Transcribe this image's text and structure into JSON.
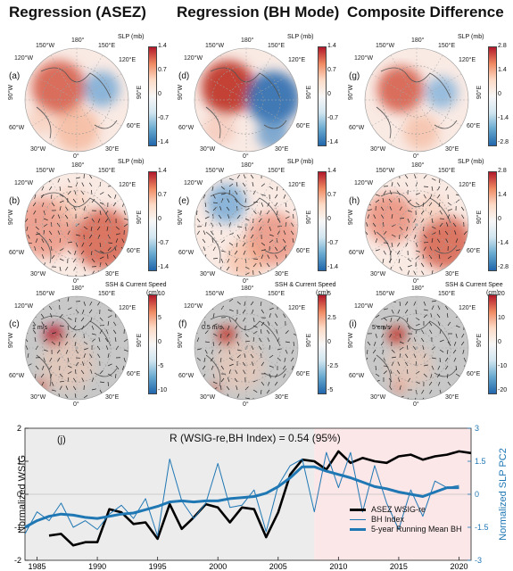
{
  "columns": [
    {
      "title": "Regression (ASEZ)"
    },
    {
      "title": "Regression (BH Mode)"
    },
    {
      "title": "Composite Difference"
    }
  ],
  "map_labels": {
    "lon_180": "180°",
    "lon_150w": "150°W",
    "lon_150e": "150°E",
    "lon_120w": "120°W",
    "lon_120e": "120°E",
    "lon_90w": "90°W",
    "lon_90e": "90°E",
    "lon_60w": "60°W",
    "lon_60e": "60°E",
    "lon_30w": "30°W",
    "lon_30e": "30°E",
    "lon_0": "0°"
  },
  "panels": [
    {
      "id": "a",
      "label": "(a)",
      "cbar_title": "SLP (mb)",
      "ticks": [
        "1.4",
        "0.7",
        "0",
        "-0.7",
        "-1.4"
      ]
    },
    {
      "id": "d",
      "label": "(d)",
      "cbar_title": "SLP (mb)",
      "ticks": [
        "1.4",
        "0.7",
        "0",
        "-0.7",
        "-1.4"
      ]
    },
    {
      "id": "g",
      "label": "(g)",
      "cbar_title": "SLP (mb)",
      "ticks": [
        "2.8",
        "1.4",
        "0",
        "-1.4",
        "-2.8"
      ]
    },
    {
      "id": "b",
      "label": "(b)",
      "cbar_title": "SLP (mb)",
      "ticks": [
        "1.4",
        "0.7",
        "0",
        "-0.7",
        "-1.4"
      ]
    },
    {
      "id": "e",
      "label": "(e)",
      "cbar_title": "SLP (mb)",
      "ticks": [
        "1.4",
        "0.7",
        "0",
        "-0.7",
        "-1.4"
      ]
    },
    {
      "id": "h",
      "label": "(h)",
      "cbar_title": "SLP (mb)",
      "ticks": [
        "2.8",
        "1.4",
        "0",
        "-1.4",
        "-2.8"
      ]
    },
    {
      "id": "c",
      "label": "(c)",
      "cbar_title": "SSH & Current Speed",
      "cbar_unit": "(cm)",
      "ticks": [
        "10",
        "5",
        "0",
        "-5",
        "-10"
      ],
      "ref": "1 m/s"
    },
    {
      "id": "f",
      "label": "(f)",
      "cbar_title": "SSH & Current Speed",
      "cbar_unit": "(cm)",
      "ticks": [
        "5",
        "2.5",
        "0",
        "-2.5",
        "-5"
      ],
      "ref": "0.5 m/s"
    },
    {
      "id": "i",
      "label": "(i)",
      "cbar_title": "SSH & Current Spee",
      "cbar_unit": "(cm)",
      "ticks": [
        "20",
        "10",
        "0",
        "-10",
        "-20"
      ],
      "ref": "5 cm/s"
    }
  ],
  "timeseries": {
    "panel_label": "(j)",
    "title": "R (WSIG-re,BH Index) = 0.54 (95%)",
    "ylabel_left": "Normalized WSIG",
    "ylabel_right": "Normalized SLP PC2",
    "colors": {
      "wsig": "#000000",
      "bh": "#1f77b4",
      "running": "#1f77b4",
      "bg_early": "#ececec",
      "bg_late": "#fbe6e8"
    },
    "legend": [
      "ASEZ WSIG-re",
      "BH Index",
      "5-year Running Mean BH"
    ]
  },
  "chart_data": {
    "type": "line",
    "xlim": [
      1984,
      2021
    ],
    "ylim_left": [
      -2,
      2
    ],
    "ylim_right": [
      -3,
      3
    ],
    "x_ticks": [
      "1985",
      "1990",
      "1995",
      "2000",
      "2005",
      "2010",
      "2015",
      "2020"
    ],
    "y_ticks_left": [
      "-2",
      "-1",
      "0",
      "1",
      "2"
    ],
    "y_ticks_right": [
      "-3",
      "-1.5",
      "0",
      "1.5",
      "3"
    ],
    "shading": [
      {
        "from": 1984,
        "to": 2008,
        "color": "gray"
      },
      {
        "from": 2008,
        "to": 2021,
        "color": "pink"
      }
    ],
    "series": [
      {
        "name": "ASEZ WSIG-re",
        "axis": "left",
        "x": [
          1986,
          1987,
          1988,
          1989,
          1990,
          1991,
          1992,
          1993,
          1994,
          1995,
          1996,
          1997,
          1998,
          1999,
          2000,
          2001,
          2002,
          2003,
          2004,
          2005,
          2006,
          2007,
          2008,
          2009,
          2010,
          2011,
          2012,
          2013,
          2014,
          2015,
          2016,
          2017,
          2018,
          2019,
          2020,
          2021
        ],
        "values": [
          -1.25,
          -1.2,
          -1.55,
          -1.45,
          -1.45,
          -0.45,
          -0.55,
          -0.9,
          -0.85,
          -1.35,
          -0.3,
          -1.05,
          -0.7,
          -0.3,
          -0.4,
          -0.85,
          -0.4,
          -0.45,
          -1.3,
          -0.55,
          0.6,
          1.05,
          1.0,
          0.75,
          1.3,
          0.95,
          1.1,
          1.0,
          0.95,
          1.15,
          1.2,
          1.05,
          1.15,
          1.2,
          1.3,
          1.25
        ]
      },
      {
        "name": "BH Index",
        "axis": "right",
        "x": [
          1984,
          1985,
          1986,
          1987,
          1988,
          1989,
          1990,
          1991,
          1992,
          1993,
          1994,
          1995,
          1996,
          1997,
          1998,
          1999,
          2000,
          2001,
          2002,
          2003,
          2004,
          2005,
          2006,
          2007,
          2008,
          2009,
          2010,
          2011,
          2012,
          2013,
          2014,
          2015,
          2016,
          2017,
          2018,
          2019,
          2020
        ],
        "values": [
          -1.8,
          -0.8,
          -1.2,
          -0.4,
          -1.5,
          -1.2,
          -1.6,
          -0.9,
          -0.5,
          -1.1,
          -0.2,
          -1.9,
          1.6,
          -0.3,
          -1.1,
          -0.4,
          1.4,
          -0.6,
          -0.5,
          0.2,
          -1.7,
          0.4,
          1.3,
          1.6,
          -0.8,
          1.9,
          0.3,
          1.9,
          -0.8,
          1.3,
          -0.4,
          -1.6,
          0.2,
          -1.0,
          0.6,
          0.3,
          0.4
        ]
      },
      {
        "name": "5-year Running Mean BH",
        "axis": "right",
        "x": [
          1984,
          1985,
          1986,
          1987,
          1988,
          1989,
          1990,
          1991,
          1992,
          1993,
          1994,
          1995,
          1996,
          1997,
          1998,
          1999,
          2000,
          2001,
          2002,
          2003,
          2004,
          2005,
          2006,
          2007,
          2008,
          2009,
          2010,
          2011,
          2012,
          2013,
          2014,
          2015,
          2016,
          2017,
          2018,
          2019,
          2020
        ],
        "values": [
          -1.5,
          -1.2,
          -1.0,
          -0.9,
          -0.95,
          -1.05,
          -1.1,
          -1.0,
          -0.9,
          -0.85,
          -0.7,
          -0.55,
          -0.35,
          -0.3,
          -0.35,
          -0.3,
          -0.3,
          -0.2,
          -0.15,
          -0.1,
          0.05,
          0.35,
          0.75,
          1.25,
          1.25,
          1.05,
          0.9,
          0.75,
          0.55,
          0.35,
          0.25,
          0.1,
          0.0,
          -0.1,
          0.1,
          0.3,
          0.3
        ]
      }
    ]
  }
}
